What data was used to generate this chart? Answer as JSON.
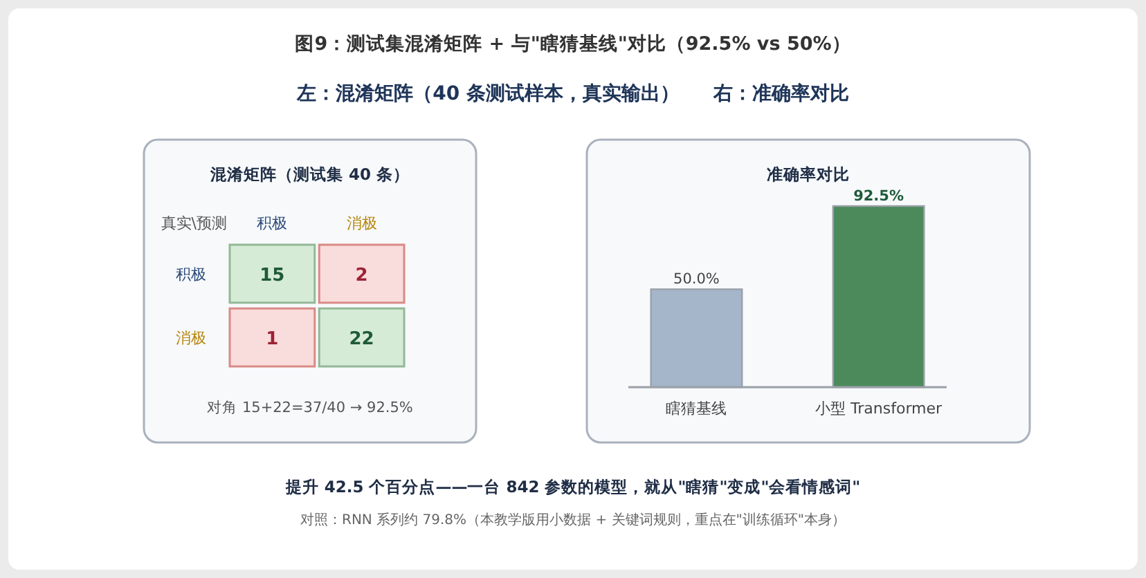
{
  "chart_data": [
    {
      "type": "heatmap",
      "title": "混淆矩阵（测试集 40 条）",
      "categories": [
        "积极",
        "消极"
      ],
      "y_categories": [
        "积极",
        "消极"
      ],
      "cells": [
        [
          15,
          2
        ],
        [
          1,
          22
        ]
      ],
      "data_labels": true,
      "annotations": [
        "图9：测试集混淆矩阵 + 与\"瞎猜基线\"对比（92.5% vs 50%）",
        "左：混淆矩阵（40 条测试样本，真实输出）     右：准确率对比",
        "真实\\预测",
        "对角 15+22=37/40 → 92.5%",
        "提升 42.5 个百分点——一台 842 参数的模型，就从\"瞎猜\"变成\"会看情感词\"",
        "对照：RNN 系列约 79.8%（本教学版用小数据 + 关键词规则，重点在\"训练循环\"本身）"
      ]
    },
    {
      "type": "bar",
      "title": "准确率对比",
      "categories": [
        "瞎猜基线",
        "小型 Transformer"
      ],
      "values": [
        50,
        92.5
      ],
      "colors": [
        "#a5b5ca",
        "#4c8a5c"
      ],
      "value_labels": [
        "50.0%",
        "92.5%"
      ]
    }
  ]
}
